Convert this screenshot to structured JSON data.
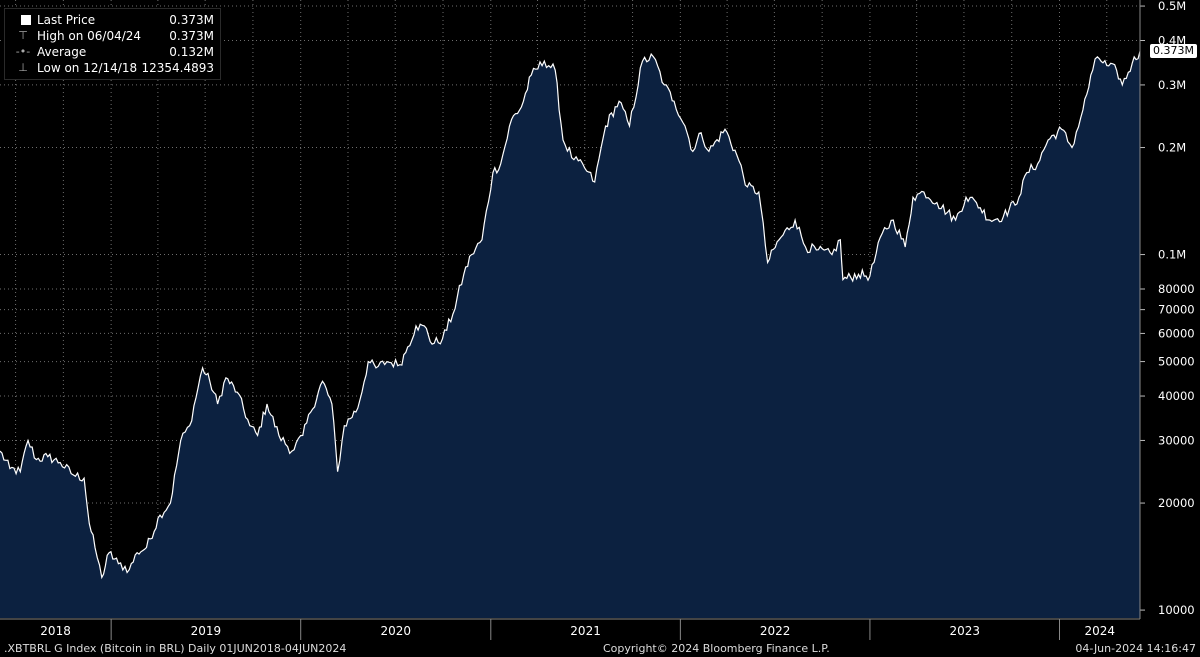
{
  "legend": {
    "last_price": {
      "label": "Last Price",
      "value": "0.373M"
    },
    "high": {
      "label": "High on 06/04/24",
      "value": "0.373M"
    },
    "average": {
      "label": "Average",
      "value": "0.132M"
    },
    "low": {
      "label": "Low on 12/14/18",
      "value": "12354.4893"
    }
  },
  "last_tag": "0.373M",
  "footer": {
    "left": ".XBTBRL G Index (Bitcoin in BRL)  Daily 01JUN2018-04JUN2024",
    "center": "Copyright© 2024 Bloomberg Finance L.P.",
    "right": "04-Jun-2024 14:16:47"
  },
  "colors": {
    "background": "#000000",
    "area": "#0c2140",
    "line": "#ffffff",
    "grid": "#6e6e6e"
  },
  "chart_data": {
    "type": "area",
    "y_scale": "log",
    "ylim": [
      9500,
      520000
    ],
    "xlim": [
      "2018-06-01",
      "2024-06-04"
    ],
    "grid": true,
    "legend_position": "top-left",
    "y_ticks": [
      {
        "value": 500000,
        "label": "0.5M"
      },
      {
        "value": 400000,
        "label": "0.4M"
      },
      {
        "value": 300000,
        "label": "0.3M"
      },
      {
        "value": 200000,
        "label": "0.2M"
      },
      {
        "value": 100000,
        "label": "0.1M"
      },
      {
        "value": 80000,
        "label": "80000"
      },
      {
        "value": 70000,
        "label": "70000"
      },
      {
        "value": 60000,
        "label": "60000"
      },
      {
        "value": 50000,
        "label": "50000"
      },
      {
        "value": 40000,
        "label": "40000"
      },
      {
        "value": 30000,
        "label": "30000"
      },
      {
        "value": 20000,
        "label": "20000"
      },
      {
        "value": 10000,
        "label": "10000"
      }
    ],
    "x_ticks": [
      "2018",
      "2019",
      "2020",
      "2021",
      "2022",
      "2023",
      "2024"
    ],
    "series": [
      {
        "name": "Last Price",
        "points": [
          [
            "2018-06-01",
            28000
          ],
          [
            "2018-06-20",
            25000
          ],
          [
            "2018-07-10",
            24500
          ],
          [
            "2018-07-25",
            30000
          ],
          [
            "2018-08-10",
            26500
          ],
          [
            "2018-09-01",
            27000
          ],
          [
            "2018-09-25",
            26000
          ],
          [
            "2018-10-20",
            24000
          ],
          [
            "2018-11-10",
            23500
          ],
          [
            "2018-11-20",
            17500
          ],
          [
            "2018-12-01",
            15000
          ],
          [
            "2018-12-14",
            12354
          ],
          [
            "2018-12-28",
            14500
          ],
          [
            "2019-01-15",
            13500
          ],
          [
            "2019-02-05",
            13000
          ],
          [
            "2019-02-20",
            14500
          ],
          [
            "2019-03-10",
            15000
          ],
          [
            "2019-04-05",
            18500
          ],
          [
            "2019-04-25",
            20000
          ],
          [
            "2019-05-15",
            30000
          ],
          [
            "2019-06-01",
            33000
          ],
          [
            "2019-06-26",
            48000
          ],
          [
            "2019-07-10",
            44000
          ],
          [
            "2019-07-25",
            38000
          ],
          [
            "2019-08-10",
            45000
          ],
          [
            "2019-09-01",
            41000
          ],
          [
            "2019-09-25",
            33000
          ],
          [
            "2019-10-10",
            31000
          ],
          [
            "2019-10-28",
            38000
          ],
          [
            "2019-11-20",
            31000
          ],
          [
            "2019-12-15",
            28000
          ],
          [
            "2020-01-05",
            31000
          ],
          [
            "2020-01-20",
            36000
          ],
          [
            "2020-02-12",
            44000
          ],
          [
            "2020-03-01",
            38000
          ],
          [
            "2020-03-12",
            24500
          ],
          [
            "2020-03-25",
            33000
          ],
          [
            "2020-04-20",
            37000
          ],
          [
            "2020-05-10",
            50000
          ],
          [
            "2020-05-25",
            48000
          ],
          [
            "2020-06-15",
            50000
          ],
          [
            "2020-07-10",
            49000
          ],
          [
            "2020-07-25",
            55000
          ],
          [
            "2020-08-10",
            63000
          ],
          [
            "2020-08-30",
            62000
          ],
          [
            "2020-09-10",
            56000
          ],
          [
            "2020-09-30",
            58000
          ],
          [
            "2020-10-20",
            68000
          ],
          [
            "2020-11-10",
            88000
          ],
          [
            "2020-11-25",
            100000
          ],
          [
            "2020-12-15",
            110000
          ],
          [
            "2021-01-05",
            170000
          ],
          [
            "2021-01-20",
            180000
          ],
          [
            "2021-02-10",
            240000
          ],
          [
            "2021-03-01",
            260000
          ],
          [
            "2021-03-20",
            320000
          ],
          [
            "2021-04-14",
            350000
          ],
          [
            "2021-05-05",
            330000
          ],
          [
            "2021-05-20",
            210000
          ],
          [
            "2021-06-10",
            185000
          ],
          [
            "2021-07-01",
            175000
          ],
          [
            "2021-07-20",
            160000
          ],
          [
            "2021-08-10",
            230000
          ],
          [
            "2021-09-05",
            270000
          ],
          [
            "2021-09-25",
            230000
          ],
          [
            "2021-10-20",
            350000
          ],
          [
            "2021-11-10",
            360000
          ],
          [
            "2021-12-01",
            300000
          ],
          [
            "2021-12-20",
            270000
          ],
          [
            "2022-01-10",
            230000
          ],
          [
            "2022-01-25",
            195000
          ],
          [
            "2022-02-10",
            220000
          ],
          [
            "2022-02-25",
            195000
          ],
          [
            "2022-03-28",
            225000
          ],
          [
            "2022-04-20",
            190000
          ],
          [
            "2022-05-10",
            155000
          ],
          [
            "2022-06-01",
            150000
          ],
          [
            "2022-06-18",
            95000
          ],
          [
            "2022-07-10",
            110000
          ],
          [
            "2022-08-10",
            125000
          ],
          [
            "2022-08-30",
            105000
          ],
          [
            "2022-09-20",
            103000
          ],
          [
            "2022-10-20",
            100000
          ],
          [
            "2022-11-05",
            110000
          ],
          [
            "2022-11-10",
            85000
          ],
          [
            "2022-12-10",
            88000
          ],
          [
            "2023-01-01",
            87000
          ],
          [
            "2023-01-25",
            115000
          ],
          [
            "2023-02-15",
            125000
          ],
          [
            "2023-03-10",
            105000
          ],
          [
            "2023-03-25",
            145000
          ],
          [
            "2023-04-15",
            150000
          ],
          [
            "2023-05-10",
            140000
          ],
          [
            "2023-06-15",
            125000
          ],
          [
            "2023-07-05",
            145000
          ],
          [
            "2023-07-25",
            140000
          ],
          [
            "2023-08-20",
            125000
          ],
          [
            "2023-09-15",
            128000
          ],
          [
            "2023-10-15",
            145000
          ],
          [
            "2023-10-30",
            170000
          ],
          [
            "2023-11-20",
            180000
          ],
          [
            "2023-12-10",
            210000
          ],
          [
            "2024-01-05",
            225000
          ],
          [
            "2024-01-25",
            200000
          ],
          [
            "2024-02-15",
            255000
          ],
          [
            "2024-03-05",
            330000
          ],
          [
            "2024-03-14",
            360000
          ],
          [
            "2024-04-01",
            340000
          ],
          [
            "2024-04-20",
            330000
          ],
          [
            "2024-05-01",
            300000
          ],
          [
            "2024-05-20",
            345000
          ],
          [
            "2024-06-04",
            373000
          ]
        ]
      }
    ]
  }
}
